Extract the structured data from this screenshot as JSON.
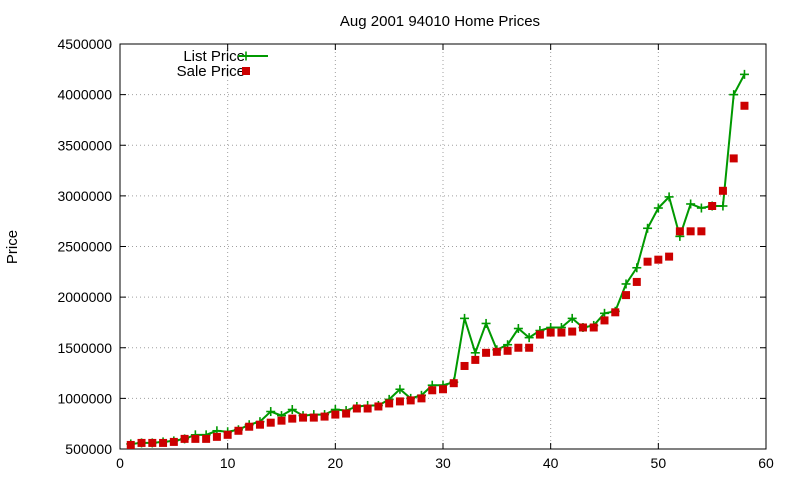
{
  "chart_data": {
    "type": "line",
    "title": "Aug 2001 94010 Home Prices",
    "xlabel": "",
    "ylabel": "Price",
    "xlim": [
      0,
      60
    ],
    "ylim": [
      500000,
      4500000
    ],
    "xticks": [
      0,
      10,
      20,
      30,
      40,
      50,
      60
    ],
    "yticks": [
      500000,
      1000000,
      1500000,
      2000000,
      2500000,
      3000000,
      3500000,
      4000000,
      4500000
    ],
    "grid": true,
    "legend_position": "top-left",
    "series": [
      {
        "name": "List Price",
        "style": "linespoints",
        "marker": "plus",
        "color": "#009900",
        "x": [
          1,
          2,
          3,
          4,
          5,
          6,
          7,
          8,
          9,
          10,
          11,
          12,
          13,
          14,
          15,
          16,
          17,
          18,
          19,
          20,
          21,
          22,
          23,
          24,
          25,
          26,
          27,
          28,
          29,
          30,
          31,
          32,
          33,
          34,
          35,
          36,
          37,
          38,
          39,
          40,
          41,
          42,
          43,
          44,
          45,
          46,
          47,
          48,
          49,
          50,
          51,
          52,
          53,
          54,
          55,
          56,
          57,
          58
        ],
        "y": [
          550000,
          560000,
          560000,
          570000,
          580000,
          600000,
          640000,
          640000,
          680000,
          670000,
          690000,
          740000,
          770000,
          870000,
          830000,
          890000,
          830000,
          840000,
          840000,
          890000,
          880000,
          920000,
          930000,
          930000,
          990000,
          1090000,
          1000000,
          1030000,
          1130000,
          1130000,
          1160000,
          1790000,
          1450000,
          1740000,
          1480000,
          1530000,
          1690000,
          1600000,
          1670000,
          1700000,
          1700000,
          1790000,
          1700000,
          1720000,
          1840000,
          1860000,
          2130000,
          2290000,
          2680000,
          2880000,
          2990000,
          2600000,
          2920000,
          2880000,
          2900000,
          2900000,
          4000000,
          4200000
        ]
      },
      {
        "name": "Sale Price",
        "style": "points",
        "marker": "square",
        "color": "#cc0000",
        "x": [
          1,
          2,
          3,
          4,
          5,
          6,
          7,
          8,
          9,
          10,
          11,
          12,
          13,
          14,
          15,
          16,
          17,
          18,
          19,
          20,
          21,
          22,
          23,
          24,
          25,
          26,
          27,
          28,
          29,
          30,
          31,
          32,
          33,
          34,
          35,
          36,
          37,
          38,
          39,
          40,
          41,
          42,
          43,
          44,
          45,
          46,
          47,
          48,
          49,
          50,
          51,
          52,
          53,
          54,
          55,
          56,
          57,
          58
        ],
        "y": [
          540000,
          560000,
          560000,
          560000,
          570000,
          600000,
          600000,
          600000,
          620000,
          640000,
          680000,
          720000,
          740000,
          760000,
          780000,
          800000,
          810000,
          810000,
          820000,
          840000,
          850000,
          900000,
          900000,
          920000,
          950000,
          970000,
          980000,
          1000000,
          1080000,
          1090000,
          1150000,
          1320000,
          1380000,
          1450000,
          1460000,
          1470000,
          1500000,
          1500000,
          1630000,
          1650000,
          1650000,
          1660000,
          1700000,
          1700000,
          1770000,
          1850000,
          2020000,
          2150000,
          2350000,
          2370000,
          2400000,
          2650000,
          2650000,
          2650000,
          2900000,
          3050000,
          3370000,
          3890000
        ]
      }
    ]
  }
}
